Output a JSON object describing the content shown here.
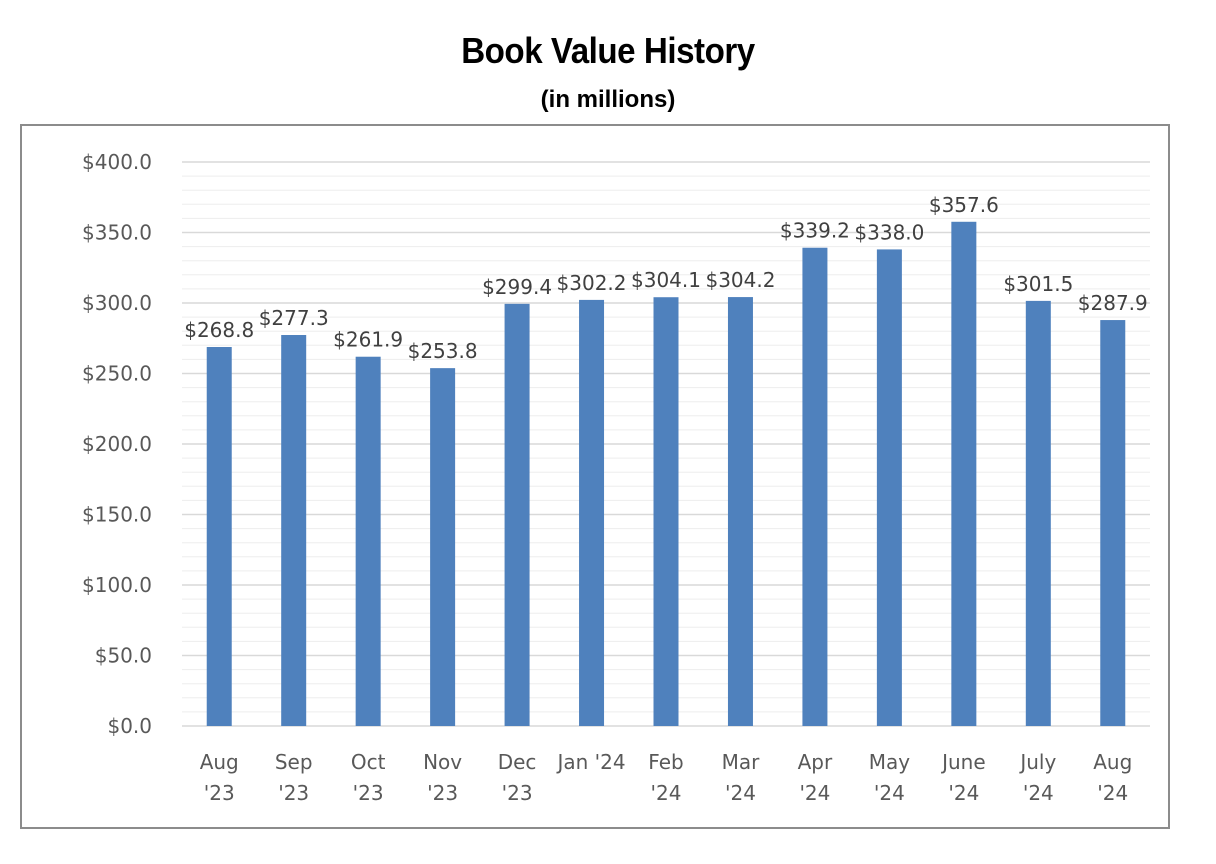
{
  "chart_data": {
    "type": "bar",
    "title": "Book Value History",
    "subtitle": "(in millions)",
    "xlabel": "",
    "ylabel": "",
    "categories": [
      [
        "Aug",
        "'23"
      ],
      [
        "Sep",
        "'23"
      ],
      [
        "Oct",
        "'23"
      ],
      [
        "Nov",
        "'23"
      ],
      [
        "Dec",
        "'23"
      ],
      [
        "Jan '24"
      ],
      [
        "Feb",
        "'24"
      ],
      [
        "Mar",
        "'24"
      ],
      [
        "Apr",
        "'24"
      ],
      [
        "May",
        "'24"
      ],
      [
        "June",
        "'24"
      ],
      [
        "July",
        "'24"
      ],
      [
        "Aug",
        "'24"
      ]
    ],
    "values": [
      268.8,
      277.3,
      261.9,
      253.8,
      299.4,
      302.2,
      304.1,
      304.2,
      339.2,
      338.0,
      357.6,
      301.5,
      287.9
    ],
    "data_labels": [
      "$268.8",
      "$277.3",
      "$261.9",
      "$253.8",
      "$299.4",
      "$302.2",
      "$304.1",
      "$304.2",
      "$339.2",
      "$338.0",
      "$357.6",
      "$301.5",
      "$287.9"
    ],
    "ylim": [
      0,
      400
    ],
    "yticks": [
      0,
      50,
      100,
      150,
      200,
      250,
      300,
      350,
      400
    ],
    "ytick_labels": [
      "$0.0",
      "$50.0",
      "$100.0",
      "$150.0",
      "$200.0",
      "$250.0",
      "$300.0",
      "$350.0",
      "$400.0"
    ],
    "grid": true,
    "minor_grid": true,
    "legend": "none",
    "colors": {
      "bar": "#4f81bd",
      "major_grid": "#d9d9d9",
      "minor_grid": "#ededed",
      "axis_text": "#595959",
      "frame": "#8c8c8c"
    }
  }
}
